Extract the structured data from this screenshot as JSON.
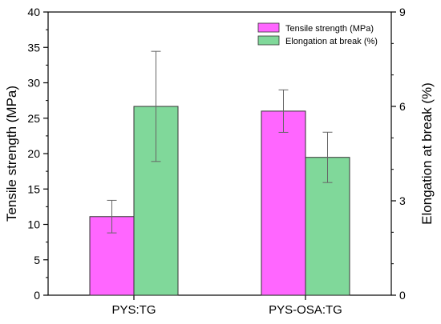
{
  "chart_data": {
    "type": "bar",
    "categories": [
      "PYS:TG",
      "PYS-OSA:TG"
    ],
    "series": [
      {
        "name": "Tensile strength (MPa)",
        "axis": "left",
        "color": "#ff66ff",
        "values": [
          11.1,
          26.0
        ],
        "errors": [
          2.3,
          3.0
        ]
      },
      {
        "name": "Elongation at break (%)",
        "axis": "right",
        "color": "#80d89a",
        "values": [
          6.0,
          4.38
        ],
        "errors": [
          1.75,
          0.8
        ]
      }
    ],
    "ylabel": "Tensile strength (MPa)",
    "ylim": [
      0,
      40
    ],
    "yticks": [
      0,
      5,
      10,
      15,
      20,
      25,
      30,
      35,
      40
    ],
    "y2label": "Elongation at break (%)",
    "y2lim": [
      0,
      9
    ],
    "y2ticks": [
      0,
      3,
      6,
      9
    ],
    "xlabel": "",
    "grid": false,
    "legend_position": "top-right"
  }
}
